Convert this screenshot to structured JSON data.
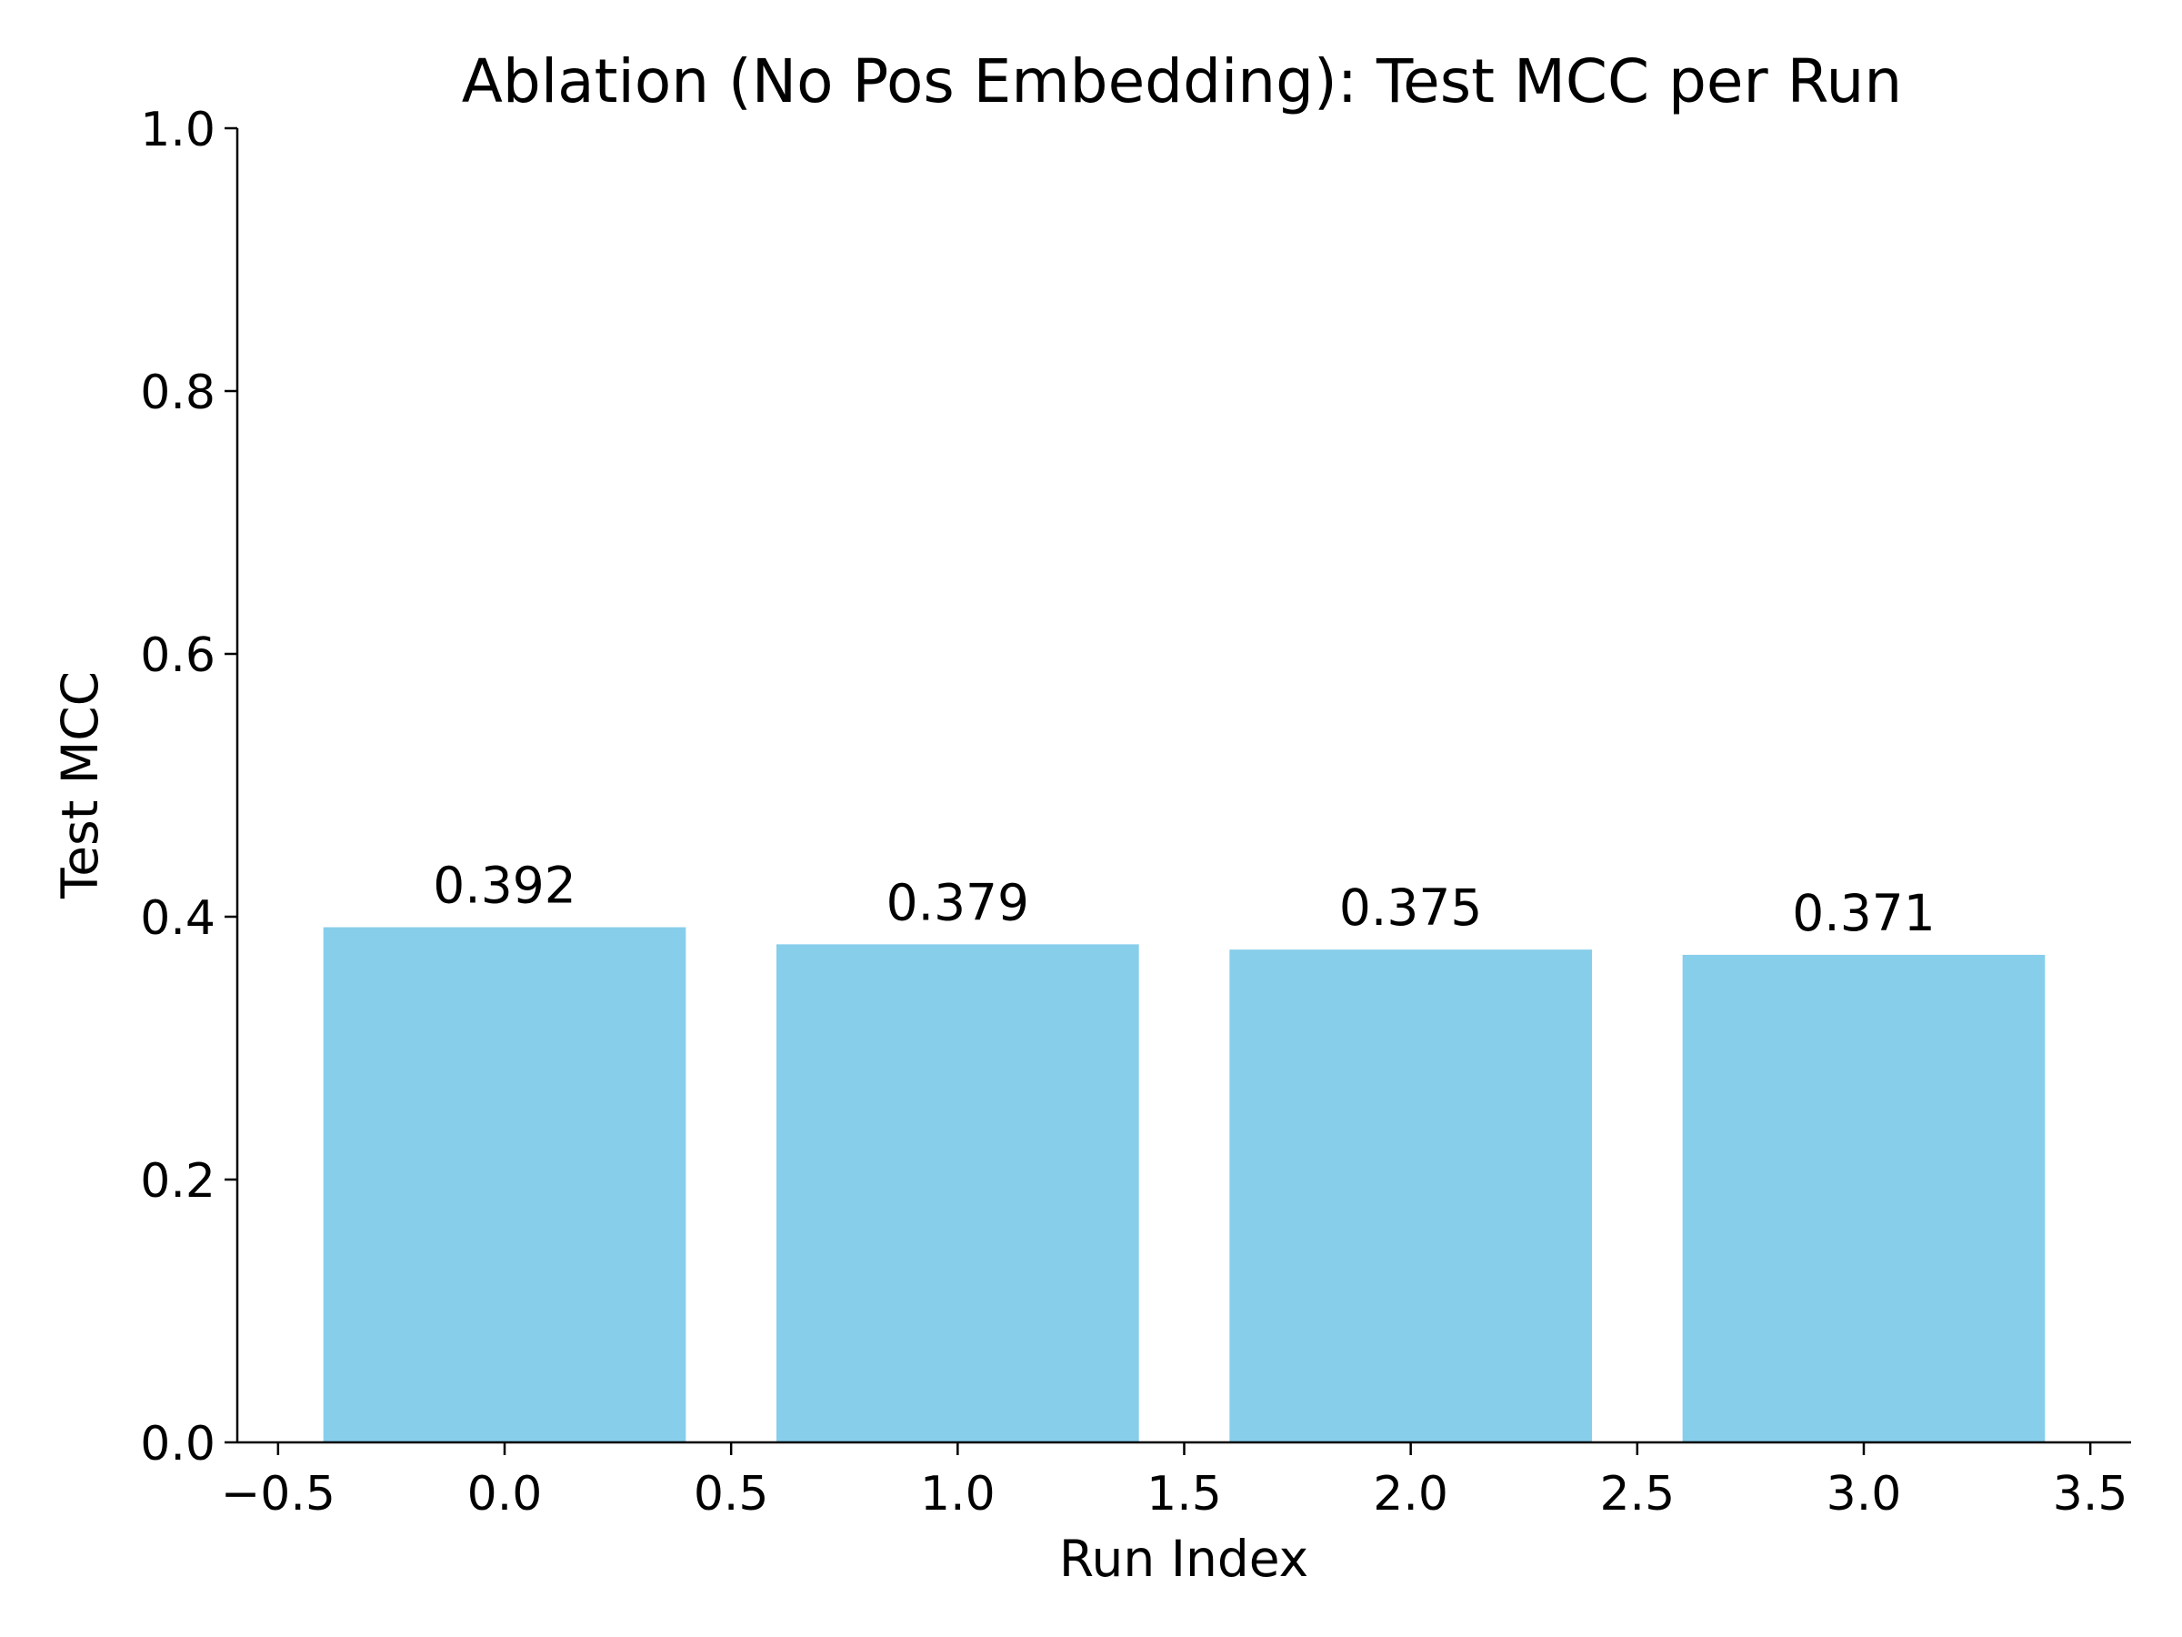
{
  "chart_data": {
    "type": "bar",
    "title": "Ablation (No Pos Embedding): Test MCC per Run",
    "xlabel": "Run Index",
    "ylabel": "Test MCC",
    "x": [
      0,
      1,
      2,
      3
    ],
    "values": [
      0.392,
      0.379,
      0.375,
      0.371
    ],
    "value_labels": [
      "0.392",
      "0.379",
      "0.375",
      "0.371"
    ],
    "bar_width": 0.8,
    "xlim": [
      -0.59,
      3.59
    ],
    "ylim": [
      0,
      1.0
    ],
    "xticks": [
      -0.5,
      0.0,
      0.5,
      1.0,
      1.5,
      2.0,
      2.5,
      3.0,
      3.5
    ],
    "xtick_labels": [
      "−0.5",
      "0.0",
      "0.5",
      "1.0",
      "1.5",
      "2.0",
      "2.5",
      "3.0",
      "3.5"
    ],
    "yticks": [
      0.0,
      0.2,
      0.4,
      0.6,
      0.8,
      1.0
    ],
    "ytick_labels": [
      "0.0",
      "0.2",
      "0.4",
      "0.6",
      "0.8",
      "1.0"
    ],
    "bar_color": "#87CEEB",
    "grid": false,
    "legend": "none"
  }
}
